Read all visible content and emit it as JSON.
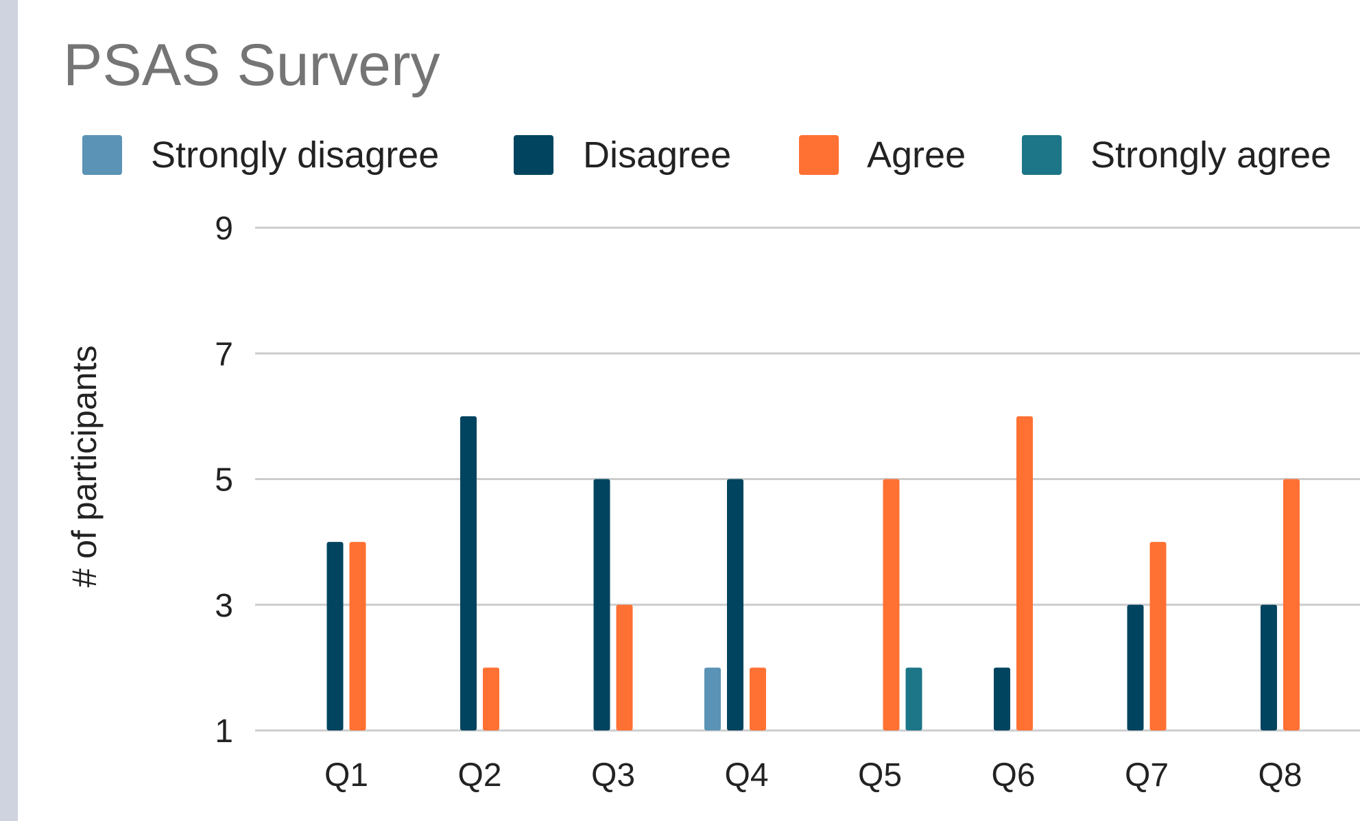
{
  "colors": {
    "strongly_disagree": "#5a93b5",
    "disagree": "#00445f",
    "agree": "#ff7033",
    "strongly_agree": "#1c7687"
  },
  "chart_data": {
    "type": "bar",
    "title": "PSAS Survery",
    "xlabel": "",
    "ylabel": "# of participants",
    "ylim": [
      1,
      9
    ],
    "yticks": [
      1,
      3,
      5,
      7,
      9
    ],
    "grid": true,
    "legend_position": "top",
    "categories": [
      "Q1",
      "Q2",
      "Q3",
      "Q4",
      "Q5",
      "Q6",
      "Q7",
      "Q8"
    ],
    "series": [
      {
        "name": "Strongly disagree",
        "color": "#5a93b5",
        "values": [
          0,
          0,
          0,
          2,
          0,
          0,
          0,
          0
        ]
      },
      {
        "name": "Disagree",
        "color": "#00445f",
        "values": [
          4,
          6,
          5,
          5,
          0,
          2,
          3,
          3
        ]
      },
      {
        "name": "Agree",
        "color": "#ff7033",
        "values": [
          4,
          2,
          3,
          2,
          5,
          6,
          4,
          5
        ]
      },
      {
        "name": "Strongly agree",
        "color": "#1c7687",
        "values": [
          0,
          0,
          0,
          0,
          2,
          0,
          0,
          0
        ]
      }
    ]
  }
}
